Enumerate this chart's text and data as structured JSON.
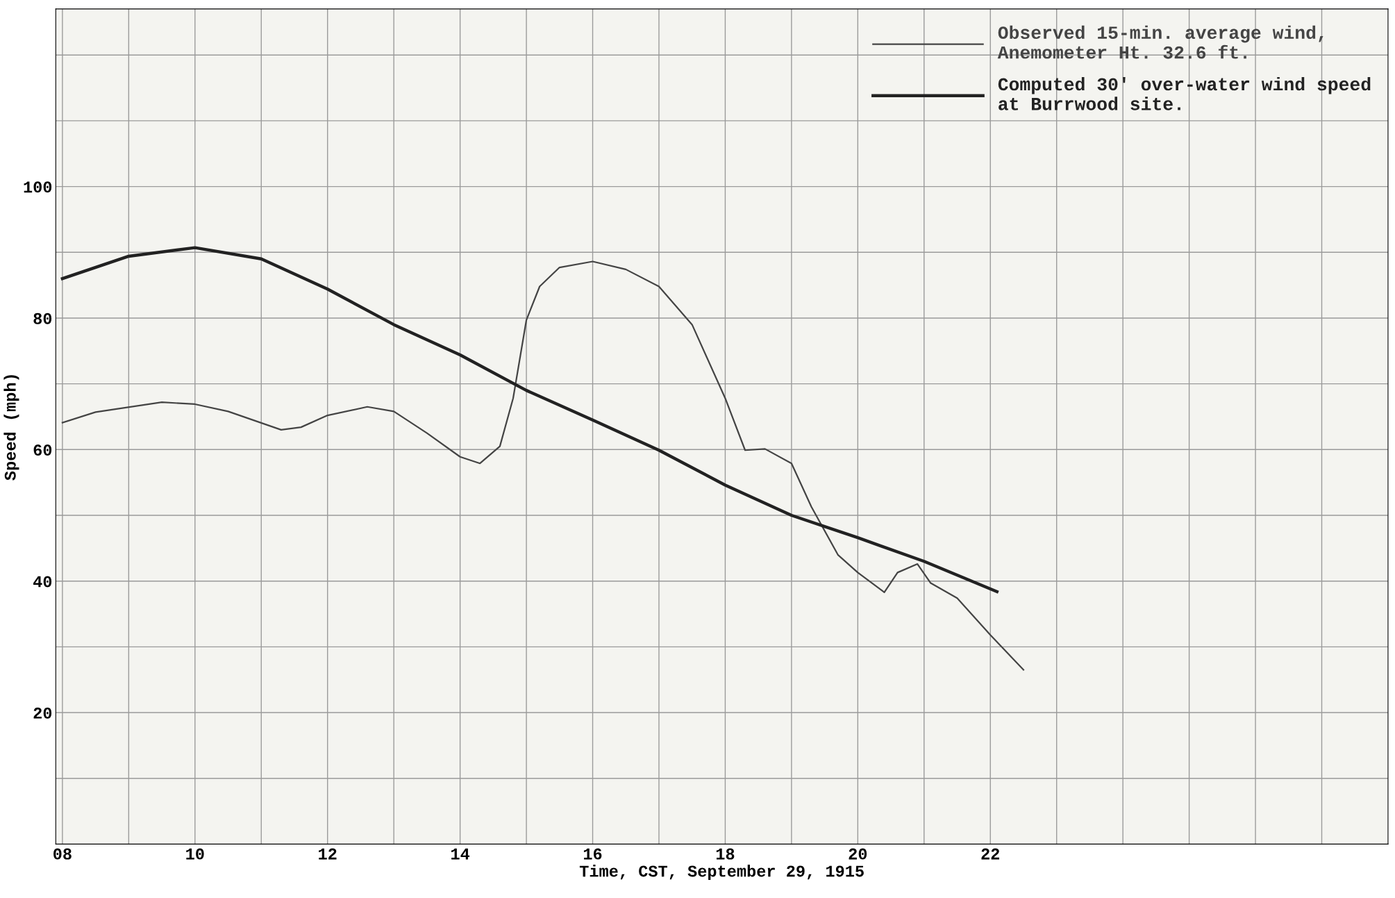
{
  "chart_data": {
    "type": "line",
    "xlabel": "Time, CST, September 29, 1915",
    "ylabel": "Speed (mph)",
    "xlim": [
      7.9,
      28
    ],
    "ylim": [
      0,
      127
    ],
    "xticks": [
      {
        "value": 8,
        "label": "08"
      },
      {
        "value": 9,
        "label": null
      },
      10,
      {
        "value": 11,
        "label": null
      },
      12,
      {
        "value": 13,
        "label": null
      },
      14,
      {
        "value": 15,
        "label": null
      },
      16,
      {
        "value": 17,
        "label": null
      },
      18,
      {
        "value": 19,
        "label": null
      },
      20,
      {
        "value": 21,
        "label": null
      },
      22,
      {
        "value": 23,
        "label": null
      },
      {
        "value": 24,
        "label": null
      },
      {
        "value": 25,
        "label": null
      },
      {
        "value": 26,
        "label": null
      },
      {
        "value": 27,
        "label": null
      }
    ],
    "yticks": [
      {
        "value": 10,
        "label": null
      },
      20,
      {
        "value": 30,
        "label": null
      },
      40,
      {
        "value": 50,
        "label": null
      },
      60,
      {
        "value": 70,
        "label": null
      },
      80,
      {
        "value": 90,
        "label": null
      },
      100,
      {
        "value": 110,
        "label": null
      },
      {
        "value": 120,
        "label": null
      }
    ],
    "grid": true,
    "legend": "top right",
    "marker": "none",
    "line_style": "solid",
    "series": [
      {
        "name": "Observed 15-min. average wind,\nAnemometer Ht. 32.6 ft.",
        "color": "#444444",
        "x": [
          8,
          8.5,
          9.5,
          10,
          10.5,
          11.3,
          11.6,
          12,
          12.6,
          13,
          13.5,
          14,
          14.3,
          14.6,
          14.8,
          15,
          15.2,
          15.5,
          16,
          16.5,
          17,
          17.5,
          18,
          18.3,
          18.6,
          19,
          19.3,
          19.7,
          20,
          20.4,
          20.6,
          20.9,
          21.1,
          21.5,
          22,
          22.5
        ],
        "values": [
          64.1,
          65.7,
          67.2,
          66.9,
          65.8,
          63,
          63.4,
          65.2,
          66.5,
          65.8,
          62.5,
          58.9,
          57.9,
          60.5,
          67.8,
          79.7,
          84.8,
          87.7,
          88.6,
          87.4,
          84.8,
          79,
          67.8,
          59.9,
          60.1,
          57.9,
          51.3,
          44,
          41.3,
          38.3,
          41.3,
          42.6,
          39.7,
          37.4,
          31.8,
          26.5
        ]
      },
      {
        "name": "Computed 30' over-water wind speed\nat Burrwood site.",
        "color": "#222222",
        "x": [
          8,
          9,
          10,
          11,
          12,
          13,
          14,
          15,
          16,
          17,
          18,
          19,
          20,
          21,
          22.1
        ],
        "values": [
          86,
          89.4,
          90.7,
          89,
          84.4,
          79,
          74.4,
          69,
          64.5,
          59.9,
          54.6,
          50,
          46.6,
          43,
          38.4
        ]
      }
    ]
  }
}
